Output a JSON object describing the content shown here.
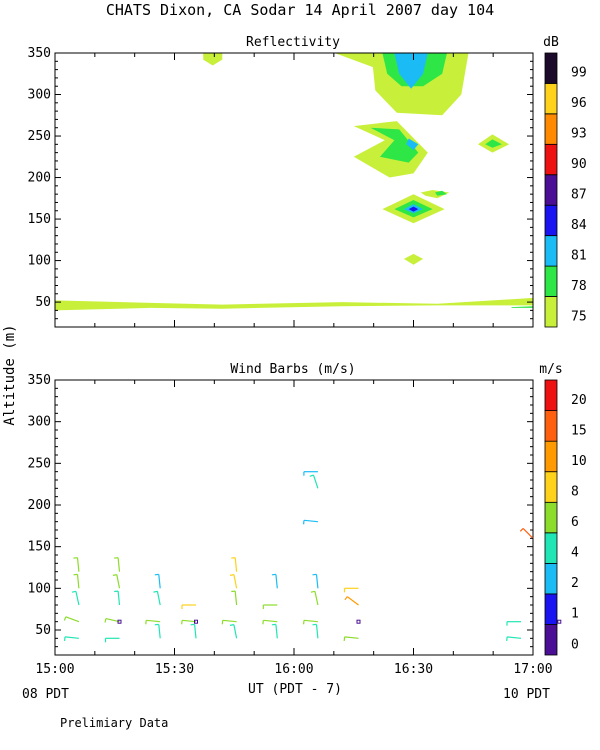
{
  "figure": {
    "title": "CHATS Dixon, CA  Sodar  14 April 2007  day 104",
    "ylabel": "Altitude (m)",
    "xlabel": "UT  (PDT - 7)",
    "left_note": "08 PDT",
    "right_note": "10 PDT",
    "footer": "Prelimiary Data"
  },
  "chart_data": [
    {
      "type": "heatmap",
      "title": "Reflectivity",
      "ylim": [
        20,
        350
      ],
      "xlim": [
        15.0,
        17.0
      ],
      "y_ticks": [
        50,
        100,
        150,
        200,
        250,
        300,
        350
      ],
      "x_ticks": [
        15.0,
        15.5,
        16.0,
        16.5,
        17.0
      ],
      "x_tick_labels": [
        "15:00",
        "15:30",
        "16:00",
        "16:30",
        "17:00"
      ],
      "colorbar": {
        "unit": "dB",
        "levels": [
          75,
          78,
          81,
          84,
          87,
          90,
          93,
          96,
          99
        ],
        "colors": [
          "#c8f03a",
          "#2ee646",
          "#1bbcf5",
          "#1a14f0",
          "#4a0f94",
          "#ee1111",
          "#ff8a00",
          "#fed21a",
          "#1c0a2a"
        ]
      },
      "regions": [
        {
          "level": 75,
          "shape": [
            [
              15.0,
              40
            ],
            [
              15.4,
              43
            ],
            [
              15.7,
              42
            ],
            [
              16.2,
              45
            ],
            [
              16.6,
              46
            ],
            [
              17.0,
              46
            ],
            [
              17.0,
              55
            ],
            [
              16.6,
              48
            ],
            [
              16.2,
              50
            ],
            [
              15.7,
              47
            ],
            [
              15.4,
              49
            ],
            [
              15.0,
              52
            ]
          ]
        },
        {
          "level": 75,
          "shape": [
            [
              15.62,
              350
            ],
            [
              15.7,
              350
            ],
            [
              15.7,
              342
            ],
            [
              15.66,
              335
            ],
            [
              15.62,
              342
            ]
          ]
        },
        {
          "level": 75,
          "shape": [
            [
              16.17,
              350
            ],
            [
              16.73,
              350
            ],
            [
              16.7,
              300
            ],
            [
              16.62,
              275
            ],
            [
              16.43,
              278
            ],
            [
              16.34,
              305
            ],
            [
              16.33,
              333
            ]
          ]
        },
        {
          "level": 78,
          "shape": [
            [
              16.37,
              350
            ],
            [
              16.64,
              350
            ],
            [
              16.62,
              325
            ],
            [
              16.54,
              310
            ],
            [
              16.45,
              310
            ],
            [
              16.39,
              325
            ]
          ]
        },
        {
          "level": 81,
          "shape": [
            [
              16.42,
              350
            ],
            [
              16.56,
              350
            ],
            [
              16.54,
              325
            ],
            [
              16.49,
              307
            ],
            [
              16.44,
              325
            ]
          ]
        },
        {
          "level": 75,
          "shape": [
            [
              16.25,
              262
            ],
            [
              16.43,
              268
            ],
            [
              16.56,
              230
            ],
            [
              16.5,
              205
            ],
            [
              16.4,
              200
            ],
            [
              16.25,
              225
            ],
            [
              16.38,
              245
            ]
          ]
        },
        {
          "level": 78,
          "shape": [
            [
              16.32,
              260
            ],
            [
              16.44,
              258
            ],
            [
              16.52,
              230
            ],
            [
              16.48,
              218
            ],
            [
              16.36,
              225
            ],
            [
              16.42,
              245
            ]
          ]
        },
        {
          "level": 81,
          "shape": [
            [
              16.48,
              247
            ],
            [
              16.52,
              240
            ],
            [
              16.5,
              233
            ],
            [
              16.47,
              240
            ]
          ]
        },
        {
          "level": 75,
          "shape": [
            [
              16.77,
              240
            ],
            [
              16.83,
              252
            ],
            [
              16.9,
              240
            ],
            [
              16.83,
              230
            ]
          ]
        },
        {
          "level": 78,
          "shape": [
            [
              16.8,
              240
            ],
            [
              16.83,
              246
            ],
            [
              16.87,
              240
            ],
            [
              16.83,
              236
            ]
          ]
        },
        {
          "level": 75,
          "shape": [
            [
              16.53,
              182
            ],
            [
              16.58,
              185
            ],
            [
              16.65,
              182
            ],
            [
              16.6,
              175
            ],
            [
              16.55,
              178
            ]
          ]
        },
        {
          "level": 78,
          "shape": [
            [
              16.59,
              182
            ],
            [
              16.62,
              184
            ],
            [
              16.64,
              180
            ],
            [
              16.6,
              178
            ]
          ]
        },
        {
          "level": 75,
          "shape": [
            [
              16.37,
              162
            ],
            [
              16.5,
              180
            ],
            [
              16.63,
              162
            ],
            [
              16.5,
              145
            ]
          ]
        },
        {
          "level": 78,
          "shape": [
            [
              16.42,
              162
            ],
            [
              16.5,
              173
            ],
            [
              16.58,
              162
            ],
            [
              16.5,
              152
            ]
          ]
        },
        {
          "level": 81,
          "shape": [
            [
              16.46,
              162
            ],
            [
              16.5,
              168
            ],
            [
              16.54,
              162
            ],
            [
              16.5,
              157
            ]
          ]
        },
        {
          "level": 84,
          "shape": [
            [
              16.48,
              162
            ],
            [
              16.5,
              165
            ],
            [
              16.52,
              162
            ],
            [
              16.5,
              159
            ]
          ]
        },
        {
          "level": 75,
          "shape": [
            [
              16.46,
              102
            ],
            [
              16.5,
              108
            ],
            [
              16.54,
              102
            ],
            [
              16.5,
              95
            ]
          ]
        },
        {
          "level": 78,
          "shape": [
            [
              16.91,
              43
            ],
            [
              17.0,
              43
            ],
            [
              17.0,
              45
            ],
            [
              16.91,
              44
            ]
          ]
        }
      ]
    },
    {
      "type": "scatter",
      "title": "Wind Barbs (m/s)",
      "ylim": [
        20,
        350
      ],
      "xlim": [
        15.0,
        17.0
      ],
      "y_ticks": [
        50,
        100,
        150,
        200,
        250,
        300,
        350
      ],
      "x_ticks": [
        15.0,
        15.5,
        16.0,
        16.5,
        17.0
      ],
      "x_tick_labels": [
        "15:00",
        "15:30",
        "16:00",
        "16:30",
        "17:00"
      ],
      "colorbar": {
        "unit": "m/s",
        "levels": [
          0,
          1,
          2,
          4,
          6,
          8,
          10,
          15,
          20
        ],
        "colors": [
          "#4a0f94",
          "#1a14f0",
          "#1bbcf5",
          "#1fe6b4",
          "#8cdc2c",
          "#fed21a",
          "#ff9a00",
          "#ff6010",
          "#ee1111"
        ]
      },
      "barbs": [
        {
          "t": 15.1,
          "z": 120,
          "dx": 1,
          "dy": 10,
          "c": "#8cdc2c"
        },
        {
          "t": 15.1,
          "z": 100,
          "dx": 1,
          "dy": 10,
          "c": "#8cdc2c"
        },
        {
          "t": 15.1,
          "z": 80,
          "dx": 2,
          "dy": 9,
          "c": "#1fe6b4"
        },
        {
          "t": 15.1,
          "z": 60,
          "dx": 8,
          "dy": 3,
          "c": "#8cdc2c"
        },
        {
          "t": 15.1,
          "z": 40,
          "dx": 10,
          "dy": 1,
          "c": "#1fe6b4"
        },
        {
          "t": 15.27,
          "z": 120,
          "dx": 1,
          "dy": 10,
          "c": "#8cdc2c"
        },
        {
          "t": 15.27,
          "z": 100,
          "dx": 2,
          "dy": 10,
          "c": "#8cdc2c"
        },
        {
          "t": 15.27,
          "z": 80,
          "dx": 1,
          "dy": 10,
          "c": "#1fe6b4"
        },
        {
          "t": 15.27,
          "z": 60,
          "dx": 9,
          "dy": 2,
          "c": "#8cdc2c"
        },
        {
          "t": 15.27,
          "z": 40,
          "dx": 10,
          "dy": 0,
          "c": "#1fe6b4"
        },
        {
          "t": 15.44,
          "z": 100,
          "dx": 1,
          "dy": 10,
          "c": "#1bbcf5"
        },
        {
          "t": 15.44,
          "z": 80,
          "dx": 2,
          "dy": 10,
          "c": "#1fe6b4"
        },
        {
          "t": 15.44,
          "z": 60,
          "dx": 10,
          "dy": 1,
          "c": "#8cdc2c"
        },
        {
          "t": 15.44,
          "z": 40,
          "dx": 1,
          "dy": 10,
          "c": "#1fe6b4"
        },
        {
          "t": 15.59,
          "z": 80,
          "dx": 10,
          "dy": 0,
          "c": "#fed21a"
        },
        {
          "t": 15.59,
          "z": 60,
          "dx": 10,
          "dy": 1,
          "c": "#8cdc2c"
        },
        {
          "t": 15.59,
          "z": 40,
          "dx": 1,
          "dy": 10,
          "c": "#1fe6b4"
        },
        {
          "t": 15.76,
          "z": 120,
          "dx": 1,
          "dy": 10,
          "c": "#fed21a"
        },
        {
          "t": 15.76,
          "z": 100,
          "dx": 2,
          "dy": 10,
          "c": "#fed21a"
        },
        {
          "t": 15.76,
          "z": 80,
          "dx": 1,
          "dy": 10,
          "c": "#8cdc2c"
        },
        {
          "t": 15.76,
          "z": 60,
          "dx": 10,
          "dy": 1,
          "c": "#8cdc2c"
        },
        {
          "t": 15.76,
          "z": 40,
          "dx": 2,
          "dy": 10,
          "c": "#1fe6b4"
        },
        {
          "t": 15.93,
          "z": 100,
          "dx": 1,
          "dy": 10,
          "c": "#1bbcf5"
        },
        {
          "t": 15.93,
          "z": 80,
          "dx": 10,
          "dy": 0,
          "c": "#8cdc2c"
        },
        {
          "t": 15.93,
          "z": 60,
          "dx": 10,
          "dy": 1,
          "c": "#8cdc2c"
        },
        {
          "t": 15.93,
          "z": 40,
          "dx": 1,
          "dy": 10,
          "c": "#1fe6b4"
        },
        {
          "t": 16.1,
          "z": 240,
          "dx": 10,
          "dy": 0,
          "c": "#1bbcf5"
        },
        {
          "t": 16.1,
          "z": 220,
          "dx": 3,
          "dy": 9,
          "c": "#1fe6b4"
        },
        {
          "t": 16.1,
          "z": 180,
          "dx": 10,
          "dy": 1,
          "c": "#1bbcf5"
        },
        {
          "t": 16.1,
          "z": 100,
          "dx": 1,
          "dy": 10,
          "c": "#1bbcf5"
        },
        {
          "t": 16.1,
          "z": 80,
          "dx": 2,
          "dy": 9,
          "c": "#8cdc2c"
        },
        {
          "t": 16.1,
          "z": 60,
          "dx": 10,
          "dy": 1,
          "c": "#8cdc2c"
        },
        {
          "t": 16.1,
          "z": 40,
          "dx": 1,
          "dy": 10,
          "c": "#1fe6b4"
        },
        {
          "t": 16.27,
          "z": 100,
          "dx": 10,
          "dy": 0,
          "c": "#fed21a"
        },
        {
          "t": 16.27,
          "z": 80,
          "dx": 8,
          "dy": 6,
          "c": "#ff9a00"
        },
        {
          "t": 16.27,
          "z": 40,
          "dx": 10,
          "dy": 1,
          "c": "#8cdc2c"
        },
        {
          "t": 17.0,
          "z": 160,
          "dx": 7,
          "dy": 7,
          "c": "#ff6010"
        },
        {
          "t": 16.95,
          "z": 60,
          "dx": 10,
          "dy": 0,
          "c": "#1fe6b4"
        },
        {
          "t": 16.95,
          "z": 40,
          "dx": 10,
          "dy": 1,
          "c": "#1fe6b4"
        }
      ],
      "calm": [
        {
          "t": 15.27,
          "z": 60
        },
        {
          "t": 15.59,
          "z": 60
        },
        {
          "t": 16.27,
          "z": 60
        },
        {
          "t": 17.11,
          "z": 60
        }
      ]
    }
  ]
}
